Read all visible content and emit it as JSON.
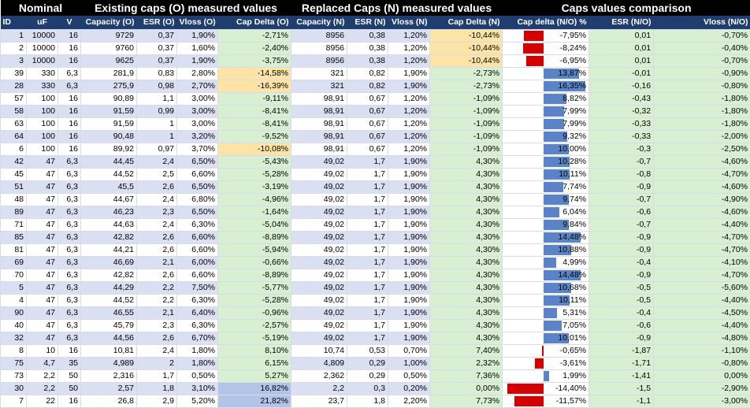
{
  "groups": {
    "nominal": "Nominal",
    "existing": "Existing caps (O) measured values",
    "replaced": "Replaced Caps (N) measured values",
    "comparison": "Caps  values comparison"
  },
  "columns": [
    "ID",
    "uF",
    "V",
    "Capacity (O)",
    "ESR (O)",
    "Vloss (O)",
    "Cap Delta (O)",
    "Capacity (N)",
    "ESR (N)",
    "Vloss (N)",
    "Cap  Delta (N)",
    "Cap delta (N/O) %",
    "ESR (N/O)",
    "Vloss (N/O)"
  ],
  "colors": {
    "header": "#000000",
    "column_header": "#1f3d6e",
    "band": "#dadff2",
    "green": "#d8efd2",
    "yellow": "#fbe4a6",
    "blue_cell": "#b4c3e8",
    "bar_negative": "#d40000",
    "bar_positive": "#5b84c6"
  },
  "rows": [
    {
      "id": "1",
      "uf": "10000",
      "v": "16",
      "cap_o": "9729",
      "esr_o": "0,37",
      "vloss_o": "1,90%",
      "delta_o": "-2,71%",
      "delta_o_color": "g",
      "cap_n": "8956",
      "esr_n": "0,38",
      "vloss_n": "1,20%",
      "delta_n": "-10,44%",
      "delta_n_color": "y",
      "ratio": "-7,95%",
      "ratio_value": -7.95,
      "esr_ratio": "0,01",
      "vloss_ratio": "-0,70%"
    },
    {
      "id": "2",
      "uf": "10000",
      "v": "16",
      "cap_o": "9760",
      "esr_o": "0,37",
      "vloss_o": "1,60%",
      "delta_o": "-2,40%",
      "delta_o_color": "g",
      "cap_n": "8956",
      "esr_n": "0,38",
      "vloss_n": "1,20%",
      "delta_n": "-10,44%",
      "delta_n_color": "y",
      "ratio": "-8,24%",
      "ratio_value": -8.24,
      "esr_ratio": "0,01",
      "vloss_ratio": "-0,40%"
    },
    {
      "id": "3",
      "uf": "10000",
      "v": "16",
      "cap_o": "9625",
      "esr_o": "0,37",
      "vloss_o": "1,90%",
      "delta_o": "-3,75%",
      "delta_o_color": "g",
      "cap_n": "8956",
      "esr_n": "0,38",
      "vloss_n": "1,20%",
      "delta_n": "-10,44%",
      "delta_n_color": "y",
      "ratio": "-6,95%",
      "ratio_value": -6.95,
      "esr_ratio": "0,01",
      "vloss_ratio": "-0,70%"
    },
    {
      "id": "39",
      "uf": "330",
      "v": "6,3",
      "cap_o": "281,9",
      "esr_o": "0,83",
      "vloss_o": "2,80%",
      "delta_o": "-14,58%",
      "delta_o_color": "y",
      "cap_n": "321",
      "esr_n": "0,82",
      "vloss_n": "1,90%",
      "delta_n": "-2,73%",
      "delta_n_color": "g",
      "ratio": "13,87%",
      "ratio_value": 13.87,
      "esr_ratio": "-0,01",
      "vloss_ratio": "-0,90%"
    },
    {
      "id": "28",
      "uf": "330",
      "v": "6,3",
      "cap_o": "275,9",
      "esr_o": "0,98",
      "vloss_o": "2,70%",
      "delta_o": "-16,39%",
      "delta_o_color": "y",
      "cap_n": "321",
      "esr_n": "0,82",
      "vloss_n": "1,90%",
      "delta_n": "-2,73%",
      "delta_n_color": "g",
      "ratio": "16,35%",
      "ratio_value": 16.35,
      "esr_ratio": "-0,16",
      "vloss_ratio": "-0,80%"
    },
    {
      "id": "57",
      "uf": "100",
      "v": "16",
      "cap_o": "90,89",
      "esr_o": "1,1",
      "vloss_o": "3,00%",
      "delta_o": "-9,11%",
      "delta_o_color": "g",
      "cap_n": "98,91",
      "esr_n": "0,67",
      "vloss_n": "1,20%",
      "delta_n": "-1,09%",
      "delta_n_color": "g",
      "ratio": "8,82%",
      "ratio_value": 8.82,
      "esr_ratio": "-0,43",
      "vloss_ratio": "-1,80%"
    },
    {
      "id": "58",
      "uf": "100",
      "v": "16",
      "cap_o": "91,59",
      "esr_o": "0,99",
      "vloss_o": "3,00%",
      "delta_o": "-8,41%",
      "delta_o_color": "g",
      "cap_n": "98,91",
      "esr_n": "0,67",
      "vloss_n": "1,20%",
      "delta_n": "-1,09%",
      "delta_n_color": "g",
      "ratio": "7,99%",
      "ratio_value": 7.99,
      "esr_ratio": "-0,32",
      "vloss_ratio": "-1,80%"
    },
    {
      "id": "63",
      "uf": "100",
      "v": "16",
      "cap_o": "91,59",
      "esr_o": "1",
      "vloss_o": "3,00%",
      "delta_o": "-8,41%",
      "delta_o_color": "g",
      "cap_n": "98,91",
      "esr_n": "0,67",
      "vloss_n": "1,20%",
      "delta_n": "-1,09%",
      "delta_n_color": "g",
      "ratio": "7,99%",
      "ratio_value": 7.99,
      "esr_ratio": "-0,33",
      "vloss_ratio": "-1,80%"
    },
    {
      "id": "64",
      "uf": "100",
      "v": "16",
      "cap_o": "90,48",
      "esr_o": "1",
      "vloss_o": "3,20%",
      "delta_o": "-9,52%",
      "delta_o_color": "g",
      "cap_n": "98,91",
      "esr_n": "0,67",
      "vloss_n": "1,20%",
      "delta_n": "-1,09%",
      "delta_n_color": "g",
      "ratio": "9,32%",
      "ratio_value": 9.32,
      "esr_ratio": "-0,33",
      "vloss_ratio": "-2,00%"
    },
    {
      "id": "6",
      "uf": "100",
      "v": "16",
      "cap_o": "89,92",
      "esr_o": "0,97",
      "vloss_o": "3,70%",
      "delta_o": "-10,08%",
      "delta_o_color": "y",
      "cap_n": "98,91",
      "esr_n": "0,67",
      "vloss_n": "1,20%",
      "delta_n": "-1,09%",
      "delta_n_color": "g",
      "ratio": "10,00%",
      "ratio_value": 10.0,
      "esr_ratio": "-0,3",
      "vloss_ratio": "-2,50%"
    },
    {
      "id": "42",
      "uf": "47",
      "v": "6,3",
      "cap_o": "44,45",
      "esr_o": "2,4",
      "vloss_o": "6,50%",
      "delta_o": "-5,43%",
      "delta_o_color": "g",
      "cap_n": "49,02",
      "esr_n": "1,7",
      "vloss_n": "1,90%",
      "delta_n": "4,30%",
      "delta_n_color": "g",
      "ratio": "10,28%",
      "ratio_value": 10.28,
      "esr_ratio": "-0,7",
      "vloss_ratio": "-4,60%"
    },
    {
      "id": "45",
      "uf": "47",
      "v": "6,3",
      "cap_o": "44,52",
      "esr_o": "2,5",
      "vloss_o": "6,60%",
      "delta_o": "-5,28%",
      "delta_o_color": "g",
      "cap_n": "49,02",
      "esr_n": "1,7",
      "vloss_n": "1,90%",
      "delta_n": "4,30%",
      "delta_n_color": "g",
      "ratio": "10,11%",
      "ratio_value": 10.11,
      "esr_ratio": "-0,8",
      "vloss_ratio": "-4,70%"
    },
    {
      "id": "51",
      "uf": "47",
      "v": "6,3",
      "cap_o": "45,5",
      "esr_o": "2,6",
      "vloss_o": "6,50%",
      "delta_o": "-3,19%",
      "delta_o_color": "g",
      "cap_n": "49,02",
      "esr_n": "1,7",
      "vloss_n": "1,90%",
      "delta_n": "4,30%",
      "delta_n_color": "g",
      "ratio": "7,74%",
      "ratio_value": 7.74,
      "esr_ratio": "-0,9",
      "vloss_ratio": "-4,60%"
    },
    {
      "id": "48",
      "uf": "47",
      "v": "6,3",
      "cap_o": "44,67",
      "esr_o": "2,4",
      "vloss_o": "6,80%",
      "delta_o": "-4,96%",
      "delta_o_color": "g",
      "cap_n": "49,02",
      "esr_n": "1,7",
      "vloss_n": "1,90%",
      "delta_n": "4,30%",
      "delta_n_color": "g",
      "ratio": "9,74%",
      "ratio_value": 9.74,
      "esr_ratio": "-0,7",
      "vloss_ratio": "-4,90%"
    },
    {
      "id": "89",
      "uf": "47",
      "v": "6,3",
      "cap_o": "46,23",
      "esr_o": "2,3",
      "vloss_o": "6,50%",
      "delta_o": "-1,64%",
      "delta_o_color": "g",
      "cap_n": "49,02",
      "esr_n": "1,7",
      "vloss_n": "1,90%",
      "delta_n": "4,30%",
      "delta_n_color": "g",
      "ratio": "6,04%",
      "ratio_value": 6.04,
      "esr_ratio": "-0,6",
      "vloss_ratio": "-4,60%"
    },
    {
      "id": "71",
      "uf": "47",
      "v": "6,3",
      "cap_o": "44,63",
      "esr_o": "2,4",
      "vloss_o": "6,30%",
      "delta_o": "-5,04%",
      "delta_o_color": "g",
      "cap_n": "49,02",
      "esr_n": "1,7",
      "vloss_n": "1,90%",
      "delta_n": "4,30%",
      "delta_n_color": "g",
      "ratio": "9,84%",
      "ratio_value": 9.84,
      "esr_ratio": "-0,7",
      "vloss_ratio": "-4,40%"
    },
    {
      "id": "85",
      "uf": "47",
      "v": "6,3",
      "cap_o": "42,82",
      "esr_o": "2,6",
      "vloss_o": "6,60%",
      "delta_o": "-8,89%",
      "delta_o_color": "g",
      "cap_n": "49,02",
      "esr_n": "1,7",
      "vloss_n": "1,90%",
      "delta_n": "4,30%",
      "delta_n_color": "g",
      "ratio": "14,48%",
      "ratio_value": 14.48,
      "esr_ratio": "-0,9",
      "vloss_ratio": "-4,70%"
    },
    {
      "id": "81",
      "uf": "47",
      "v": "6,3",
      "cap_o": "44,21",
      "esr_o": "2,6",
      "vloss_o": "6,60%",
      "delta_o": "-5,94%",
      "delta_o_color": "g",
      "cap_n": "49,02",
      "esr_n": "1,7",
      "vloss_n": "1,90%",
      "delta_n": "4,30%",
      "delta_n_color": "g",
      "ratio": "10,88%",
      "ratio_value": 10.88,
      "esr_ratio": "-0,9",
      "vloss_ratio": "-4,70%"
    },
    {
      "id": "69",
      "uf": "47",
      "v": "6,3",
      "cap_o": "46,69",
      "esr_o": "2,1",
      "vloss_o": "6,00%",
      "delta_o": "-0,66%",
      "delta_o_color": "g",
      "cap_n": "49,02",
      "esr_n": "1,7",
      "vloss_n": "1,90%",
      "delta_n": "4,30%",
      "delta_n_color": "g",
      "ratio": "4,99%",
      "ratio_value": 4.99,
      "esr_ratio": "-0,4",
      "vloss_ratio": "-4,10%"
    },
    {
      "id": "70",
      "uf": "47",
      "v": "6,3",
      "cap_o": "42,82",
      "esr_o": "2,6",
      "vloss_o": "6,60%",
      "delta_o": "-8,89%",
      "delta_o_color": "g",
      "cap_n": "49,02",
      "esr_n": "1,7",
      "vloss_n": "1,90%",
      "delta_n": "4,30%",
      "delta_n_color": "g",
      "ratio": "14,48%",
      "ratio_value": 14.48,
      "esr_ratio": "-0,9",
      "vloss_ratio": "-4,70%"
    },
    {
      "id": "5",
      "uf": "47",
      "v": "6,3",
      "cap_o": "44,29",
      "esr_o": "2,2",
      "vloss_o": "7,50%",
      "delta_o": "-5,77%",
      "delta_o_color": "g",
      "cap_n": "49,02",
      "esr_n": "1,7",
      "vloss_n": "1,90%",
      "delta_n": "4,30%",
      "delta_n_color": "g",
      "ratio": "10,68%",
      "ratio_value": 10.68,
      "esr_ratio": "-0,5",
      "vloss_ratio": "-5,60%"
    },
    {
      "id": "4",
      "uf": "47",
      "v": "6,3",
      "cap_o": "44,52",
      "esr_o": "2,2",
      "vloss_o": "6,30%",
      "delta_o": "-5,28%",
      "delta_o_color": "g",
      "cap_n": "49,02",
      "esr_n": "1,7",
      "vloss_n": "1,90%",
      "delta_n": "4,30%",
      "delta_n_color": "g",
      "ratio": "10,11%",
      "ratio_value": 10.11,
      "esr_ratio": "-0,5",
      "vloss_ratio": "-4,40%"
    },
    {
      "id": "90",
      "uf": "47",
      "v": "6,3",
      "cap_o": "46,55",
      "esr_o": "2,1",
      "vloss_o": "6,40%",
      "delta_o": "-0,96%",
      "delta_o_color": "g",
      "cap_n": "49,02",
      "esr_n": "1,7",
      "vloss_n": "1,90%",
      "delta_n": "4,30%",
      "delta_n_color": "g",
      "ratio": "5,31%",
      "ratio_value": 5.31,
      "esr_ratio": "-0,4",
      "vloss_ratio": "-4,50%"
    },
    {
      "id": "40",
      "uf": "47",
      "v": "6,3",
      "cap_o": "45,79",
      "esr_o": "2,3",
      "vloss_o": "6,30%",
      "delta_o": "-2,57%",
      "delta_o_color": "g",
      "cap_n": "49,02",
      "esr_n": "1,7",
      "vloss_n": "1,90%",
      "delta_n": "4,30%",
      "delta_n_color": "g",
      "ratio": "7,05%",
      "ratio_value": 7.05,
      "esr_ratio": "-0,6",
      "vloss_ratio": "-4,40%"
    },
    {
      "id": "32",
      "uf": "47",
      "v": "6,3",
      "cap_o": "44,56",
      "esr_o": "2,6",
      "vloss_o": "6,70%",
      "delta_o": "-5,19%",
      "delta_o_color": "g",
      "cap_n": "49,02",
      "esr_n": "1,7",
      "vloss_n": "1,90%",
      "delta_n": "4,30%",
      "delta_n_color": "g",
      "ratio": "10,01%",
      "ratio_value": 10.01,
      "esr_ratio": "-0,9",
      "vloss_ratio": "-4,80%"
    },
    {
      "id": "8",
      "uf": "10",
      "v": "16",
      "cap_o": "10,81",
      "esr_o": "2,4",
      "vloss_o": "1,80%",
      "delta_o": "8,10%",
      "delta_o_color": "g",
      "cap_n": "10,74",
      "esr_n": "0,53",
      "vloss_n": "0,70%",
      "delta_n": "7,40%",
      "delta_n_color": "g",
      "ratio": "-0,65%",
      "ratio_value": -0.65,
      "esr_ratio": "-1,87",
      "vloss_ratio": "-1,10%"
    },
    {
      "id": "75",
      "uf": "4,7",
      "v": "35",
      "cap_o": "4,989",
      "esr_o": "2",
      "vloss_o": "1,80%",
      "delta_o": "6,15%",
      "delta_o_color": "g",
      "cap_n": "4,809",
      "esr_n": "0,29",
      "vloss_n": "1,00%",
      "delta_n": "2,32%",
      "delta_n_color": "g",
      "ratio": "-3,61%",
      "ratio_value": -3.61,
      "esr_ratio": "-1,71",
      "vloss_ratio": "-0,80%"
    },
    {
      "id": "73",
      "uf": "2,2",
      "v": "50",
      "cap_o": "2,316",
      "esr_o": "1,7",
      "vloss_o": "0,50%",
      "delta_o": "5,27%",
      "delta_o_color": "g",
      "cap_n": "2,362",
      "esr_n": "0,29",
      "vloss_n": "0,50%",
      "delta_n": "7,36%",
      "delta_n_color": "g",
      "ratio": "1,99%",
      "ratio_value": 1.99,
      "esr_ratio": "-1,41",
      "vloss_ratio": "0,00%"
    },
    {
      "id": "30",
      "uf": "2,2",
      "v": "50",
      "cap_o": "2,57",
      "esr_o": "1,8",
      "vloss_o": "3,10%",
      "delta_o": "16,82%",
      "delta_o_color": "b",
      "cap_n": "2,2",
      "esr_n": "0,3",
      "vloss_n": "0,20%",
      "delta_n": "0,00%",
      "delta_n_color": "g",
      "ratio": "-14,40%",
      "ratio_value": -14.4,
      "esr_ratio": "-1,5",
      "vloss_ratio": "-2,90%"
    },
    {
      "id": "7",
      "uf": "22",
      "v": "16",
      "cap_o": "26,8",
      "esr_o": "2,9",
      "vloss_o": "5,20%",
      "delta_o": "21,82%",
      "delta_o_color": "b",
      "cap_n": "23,7",
      "esr_n": "1,8",
      "vloss_n": "2,20%",
      "delta_n": "7,73%",
      "delta_n_color": "g",
      "ratio": "-11,57%",
      "ratio_value": -11.57,
      "esr_ratio": "-1,1",
      "vloss_ratio": "-3,00%"
    }
  ]
}
